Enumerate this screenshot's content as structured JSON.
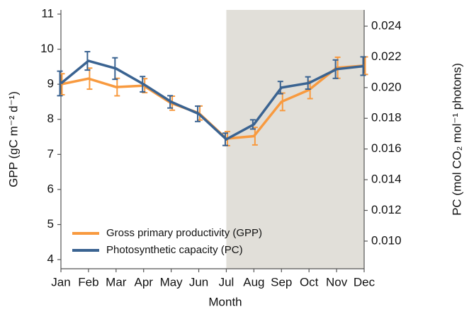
{
  "chart_data": {
    "type": "line",
    "x_label": "Month",
    "y_label": "GPP (gC m⁻² d⁻¹)",
    "y2_label": "PC (mol CO₂ mol⁻¹ photons)",
    "categories": [
      "Jan",
      "Feb",
      "Mar",
      "Apr",
      "May",
      "Jun",
      "Jul",
      "Aug",
      "Sep",
      "Oct",
      "Nov",
      "Dec"
    ],
    "shaded_range": [
      "Jul",
      "Dec"
    ],
    "shade_color": "#e1dfd9",
    "ylim": [
      3.74,
      11.12
    ],
    "yticks": [
      4,
      5,
      6,
      7,
      8,
      9,
      10,
      11
    ],
    "y2lim": [
      0.0082,
      0.02506
    ],
    "y2ticks": [
      0.01,
      0.012,
      0.014,
      0.016,
      0.018,
      0.02,
      0.022,
      0.024
    ],
    "legend": "lower left",
    "series": [
      {
        "name": "Gross primary productivity (GPP)",
        "color": "#f89a3f",
        "values": [
          9.0,
          9.16,
          8.92,
          8.96,
          8.46,
          8.18,
          7.45,
          7.52,
          8.5,
          8.84,
          9.47,
          9.53
        ],
        "errors": [
          0.3,
          0.3,
          0.25,
          0.2,
          0.2,
          0.2,
          0.2,
          0.25,
          0.25,
          0.25,
          0.3,
          0.25
        ]
      },
      {
        "name": "Photosynthetic capacity (PC)",
        "color": "#3a6391",
        "axis": "y2",
        "values": [
          0.02027,
          0.02174,
          0.02124,
          0.02022,
          0.01907,
          0.01829,
          0.01663,
          0.0176,
          0.02,
          0.0203,
          0.0212,
          0.0214
        ],
        "errors": [
          0.0008,
          0.0006,
          0.0007,
          0.0005,
          0.0004,
          0.0005,
          0.0004,
          0.0003,
          0.0004,
          0.0004,
          0.0006,
          0.0006
        ]
      }
    ]
  }
}
